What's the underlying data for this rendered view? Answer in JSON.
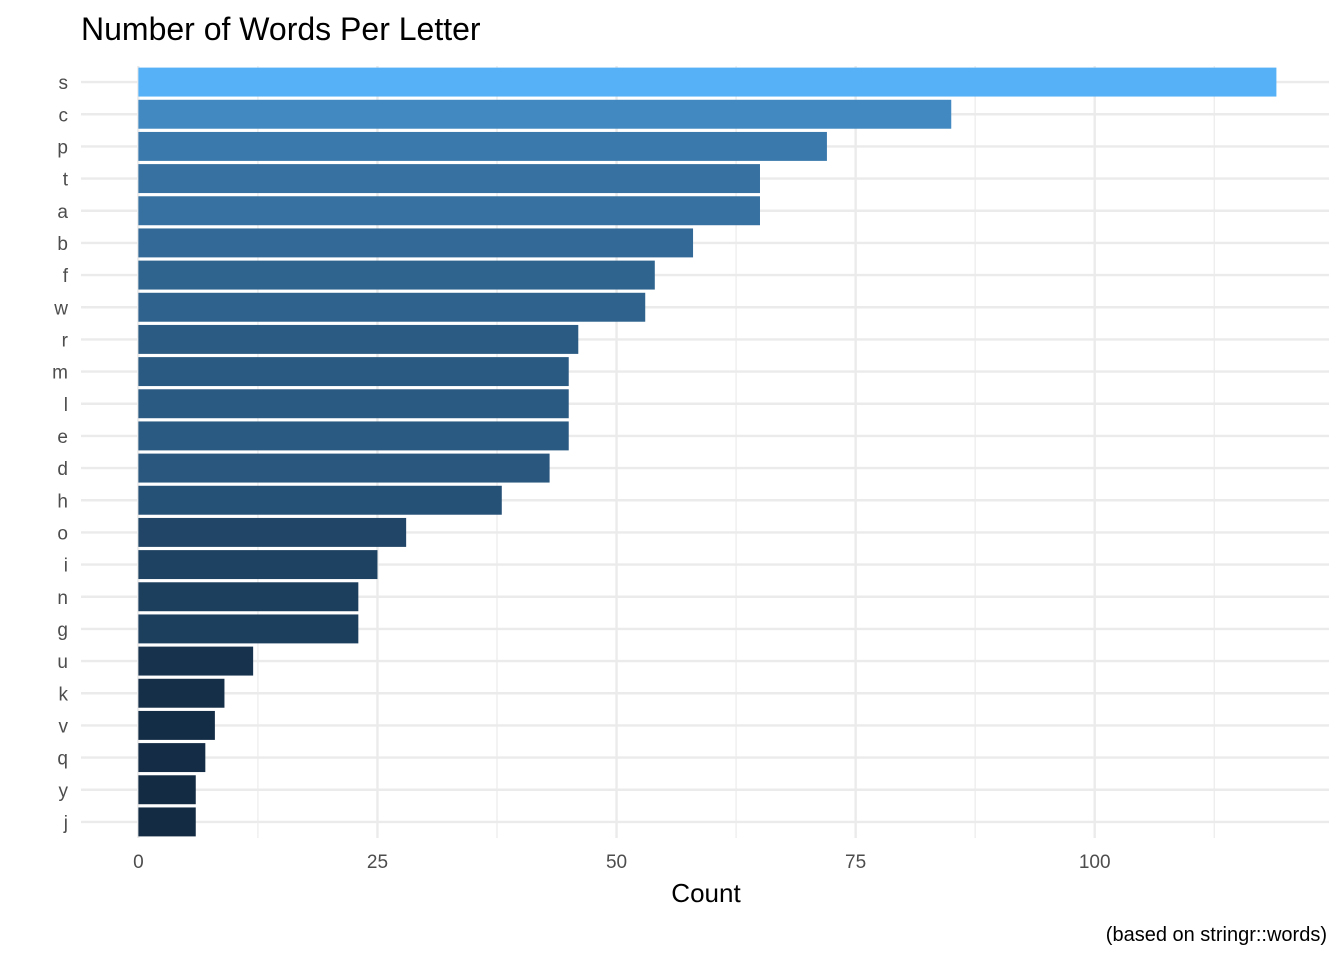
{
  "chart_data": {
    "type": "bar",
    "orientation": "horizontal",
    "title": "Number of Words Per Letter",
    "xlabel": "Count",
    "ylabel": "",
    "caption": "(based on stringr::words)",
    "categories": [
      "s",
      "c",
      "p",
      "t",
      "a",
      "b",
      "f",
      "w",
      "r",
      "m",
      "l",
      "e",
      "d",
      "h",
      "o",
      "i",
      "n",
      "g",
      "u",
      "k",
      "v",
      "q",
      "y",
      "j"
    ],
    "values": [
      119,
      85,
      72,
      65,
      65,
      58,
      54,
      53,
      46,
      45,
      45,
      45,
      43,
      38,
      28,
      25,
      23,
      23,
      12,
      9,
      8,
      7,
      6,
      6
    ],
    "xlim": [
      -6,
      124.5
    ],
    "xticks": [
      0,
      25,
      50,
      75,
      100
    ],
    "xtick_labels": [
      "0",
      "25",
      "50",
      "75",
      "100"
    ],
    "grid": true,
    "legend": "none",
    "colors": {
      "fill_low": "#132B43",
      "fill_high": "#56B1F7",
      "grid": "#ebebeb",
      "tick_text": "#4d4d4d"
    }
  }
}
